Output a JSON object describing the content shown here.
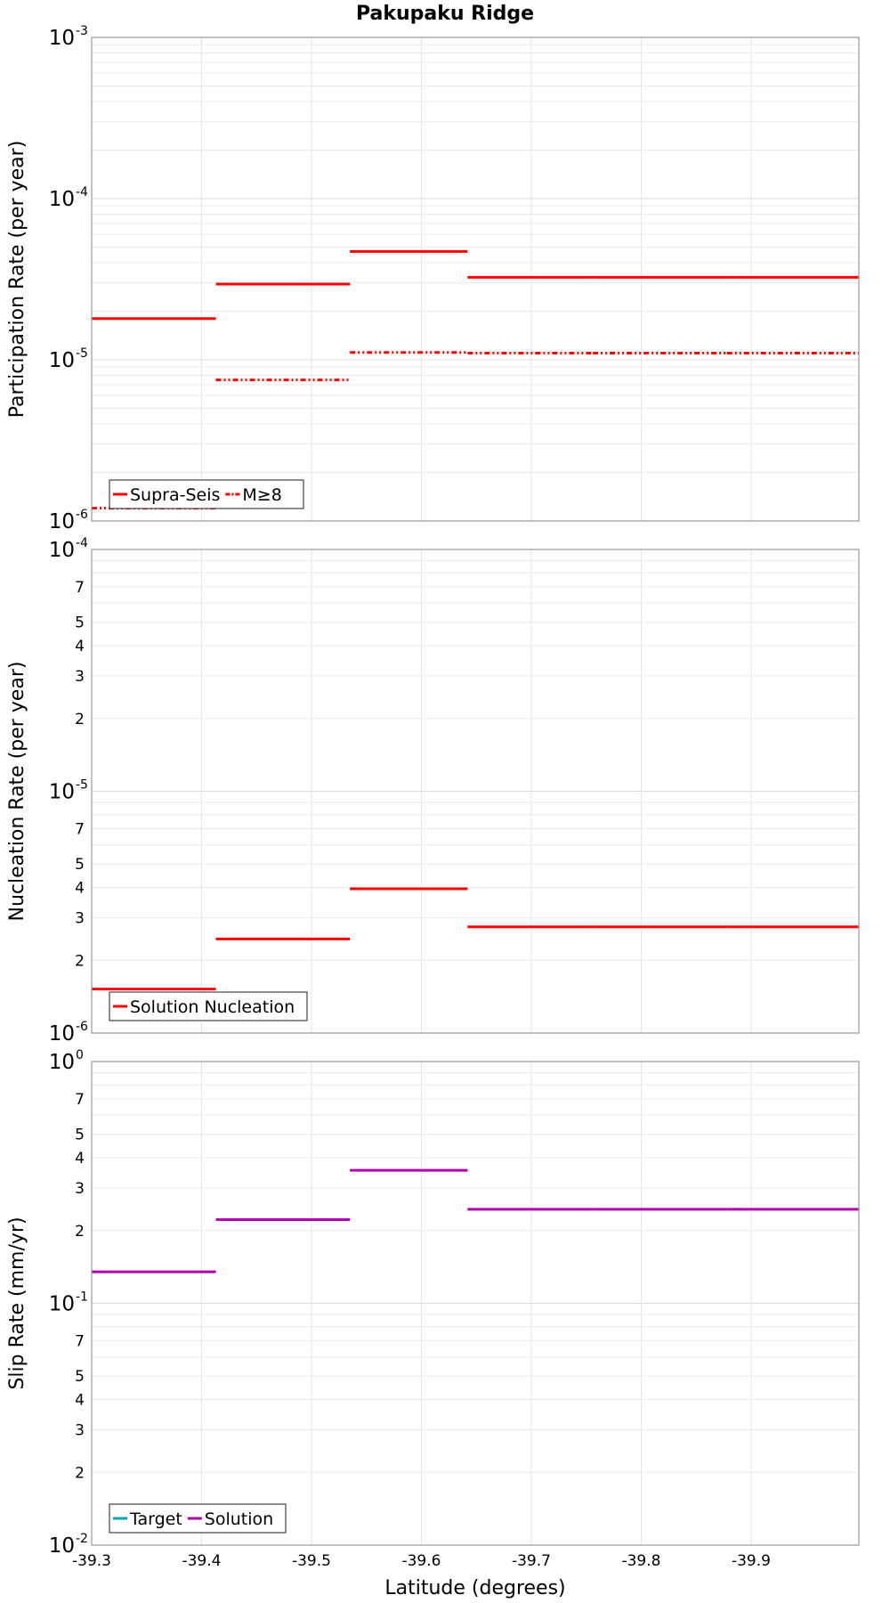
{
  "chart_data": {
    "title": "Pakupaku Ridge",
    "type": "line",
    "x": {
      "label": "Latitude (degrees)",
      "lim": [
        -39.3,
        -39.998
      ],
      "ticks": [
        -39.3,
        -39.4,
        -39.5,
        -39.6,
        -39.7,
        -39.8,
        -39.9
      ],
      "tick_labels": [
        "-39.3",
        "-39.4",
        "-39.5",
        "-39.6",
        "-39.7",
        "-39.8",
        "-39.9"
      ]
    },
    "segment_bounds": [
      -39.3,
      -39.413,
      -39.535,
      -39.642,
      -39.756,
      -39.878,
      -39.998
    ],
    "panels": [
      {
        "ylabel": "Participation Rate (per year)",
        "yscale": "log",
        "ylim": [
          1e-06,
          0.001
        ],
        "major_ticks": [
          {
            "v": 1e-06,
            "base": "10",
            "exp": "-6"
          },
          {
            "v": 1e-05,
            "base": "10",
            "exp": "-5"
          },
          {
            "v": 0.0001,
            "base": "10",
            "exp": "-4"
          },
          {
            "v": 0.001,
            "base": "10",
            "exp": "-3"
          }
        ],
        "minor_labels": [],
        "series": [
          {
            "name": "Supra-Seis",
            "color": "#ff0000",
            "dash": "solid",
            "values": [
              1.8e-05,
              2.95e-05,
              4.7e-05,
              3.25e-05,
              3.25e-05,
              3.25e-05
            ]
          },
          {
            "name": "M≥8",
            "color": "#ff0000",
            "dash": "dashdot",
            "values": [
              1.2e-06,
              7.5e-06,
              1.11e-05,
              1.1e-05,
              1.1e-05,
              1.1e-05
            ]
          }
        ],
        "legend": [
          {
            "label": "Supra-Seis",
            "color": "#ff0000",
            "dash": "solid"
          },
          {
            "label": "M≥8",
            "color": "#ff0000",
            "dash": "dashdot"
          }
        ]
      },
      {
        "ylabel": "Nucleation Rate (per year)",
        "yscale": "log",
        "ylim": [
          1e-06,
          0.0001
        ],
        "major_ticks": [
          {
            "v": 1e-06,
            "base": "10",
            "exp": "-6"
          },
          {
            "v": 1e-05,
            "base": "10",
            "exp": "-5"
          },
          {
            "v": 0.0001,
            "base": "10",
            "exp": "-4"
          }
        ],
        "minor_labels": [
          {
            "v": 2e-06,
            "label": "2"
          },
          {
            "v": 3e-06,
            "label": "3"
          },
          {
            "v": 4e-06,
            "label": "4"
          },
          {
            "v": 5e-06,
            "label": "5"
          },
          {
            "v": 7e-06,
            "label": "7"
          },
          {
            "v": 2e-05,
            "label": "2"
          },
          {
            "v": 3e-05,
            "label": "3"
          },
          {
            "v": 4e-05,
            "label": "4"
          },
          {
            "v": 5e-05,
            "label": "5"
          },
          {
            "v": 7e-05,
            "label": "7"
          }
        ],
        "series": [
          {
            "name": "Solution Nucleation",
            "color": "#ff0000",
            "dash": "solid",
            "values": [
              1.52e-06,
              2.45e-06,
              3.95e-06,
              2.75e-06,
              2.75e-06,
              2.75e-06
            ]
          }
        ],
        "legend": [
          {
            "label": "Solution Nucleation",
            "color": "#ff0000",
            "dash": "solid"
          }
        ]
      },
      {
        "ylabel": "Slip Rate (mm/yr)",
        "yscale": "log",
        "ylim": [
          0.01,
          1
        ],
        "major_ticks": [
          {
            "v": 0.01,
            "base": "10",
            "exp": "-2"
          },
          {
            "v": 0.1,
            "base": "10",
            "exp": "-1"
          },
          {
            "v": 1,
            "base": "10",
            "exp": "0"
          }
        ],
        "minor_labels": [
          {
            "v": 0.02,
            "label": "2"
          },
          {
            "v": 0.03,
            "label": "3"
          },
          {
            "v": 0.04,
            "label": "4"
          },
          {
            "v": 0.05,
            "label": "5"
          },
          {
            "v": 0.07,
            "label": "7"
          },
          {
            "v": 0.2,
            "label": "2"
          },
          {
            "v": 0.3,
            "label": "3"
          },
          {
            "v": 0.4,
            "label": "4"
          },
          {
            "v": 0.5,
            "label": "5"
          },
          {
            "v": 0.7,
            "label": "7"
          }
        ],
        "series": [
          {
            "name": "Solution",
            "color": "#b000b0",
            "dash": "solid",
            "values": [
              0.135,
              0.222,
              0.355,
              0.245,
              0.245,
              0.245
            ]
          }
        ],
        "legend": [
          {
            "label": "Target",
            "color": "#00aaaa",
            "dash": "solid"
          },
          {
            "label": "Solution",
            "color": "#b000b0",
            "dash": "solid"
          }
        ]
      }
    ]
  }
}
